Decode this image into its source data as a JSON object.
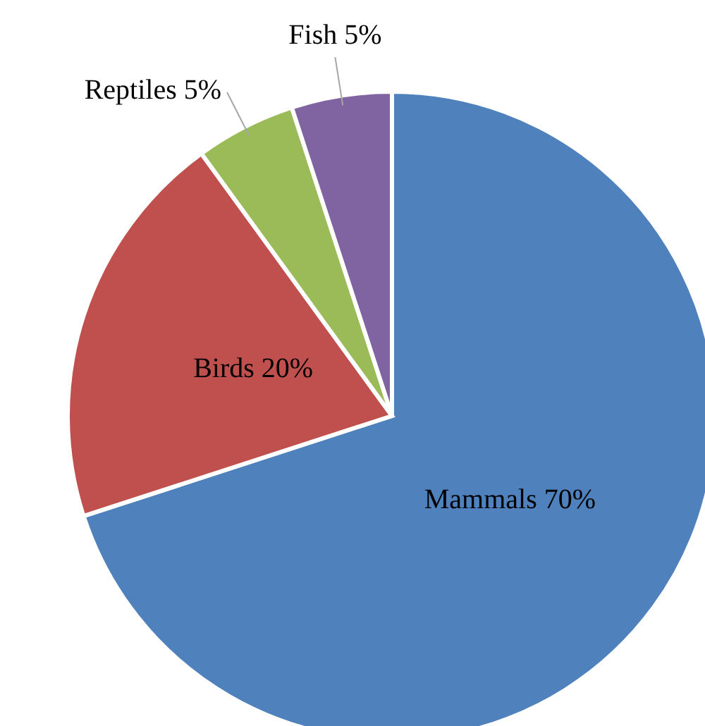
{
  "chart_data": {
    "type": "pie",
    "categories": [
      "Mammals",
      "Birds",
      "Reptiles",
      "Fish"
    ],
    "values": [
      70,
      20,
      5,
      5
    ],
    "colors": [
      "#4f81bd",
      "#c0504d",
      "#9bbb59",
      "#8064a2"
    ],
    "value_labels": [
      "70%",
      "20%",
      "5%",
      "5%"
    ]
  }
}
